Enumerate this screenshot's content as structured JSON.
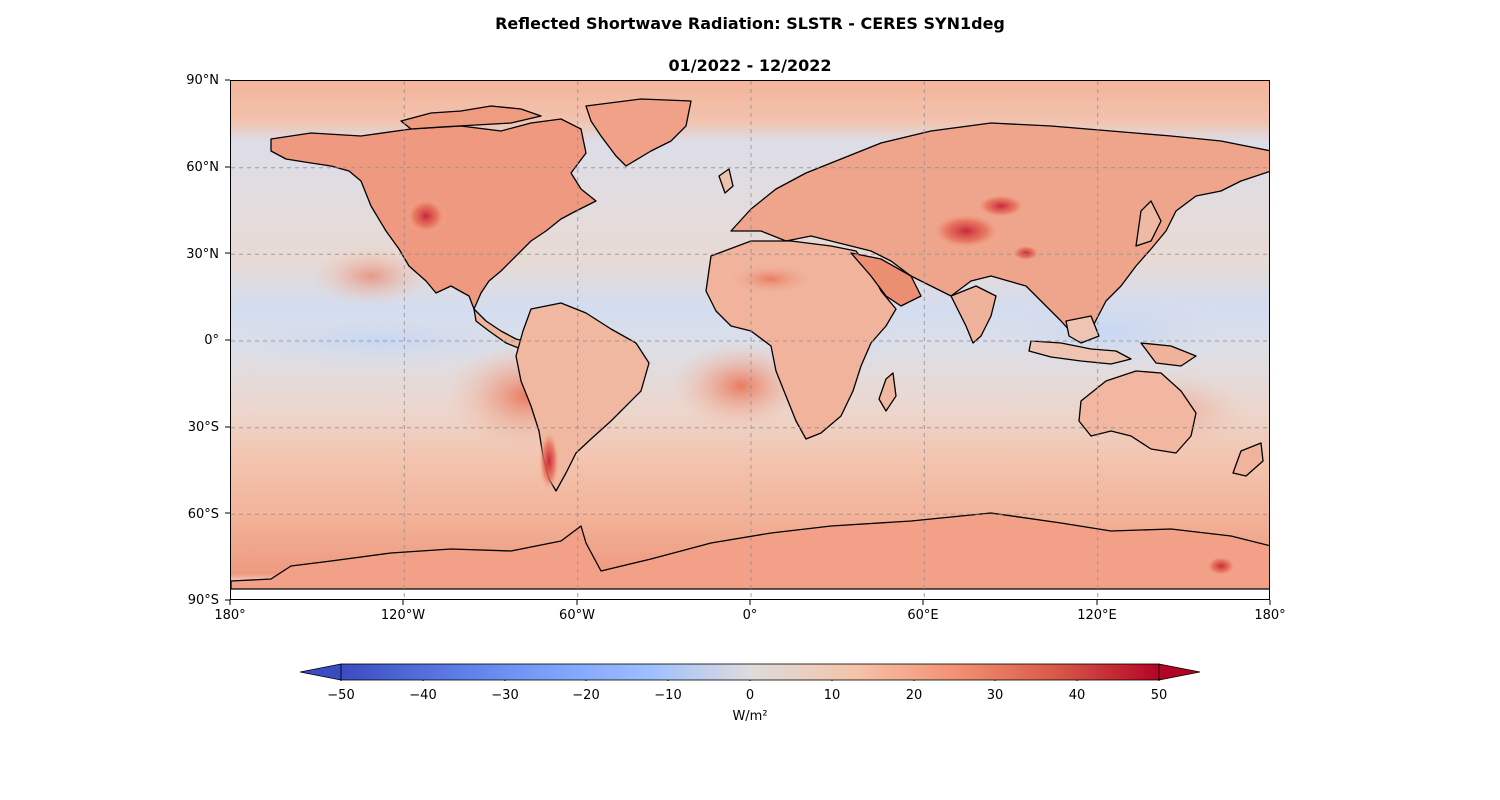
{
  "title": "Reflected Shortwave Radiation: SLSTR - CERES SYN1deg",
  "subtitle": "01/2022 - 12/2022",
  "map": {
    "projection": "PlateCarree",
    "lat_ticks": [
      "90°N",
      "60°N",
      "30°N",
      "0°",
      "30°S",
      "60°S",
      "90°S"
    ],
    "lon_ticks": [
      "180°",
      "120°W",
      "60°W",
      "0°",
      "60°E",
      "120°E",
      "180°"
    ],
    "gridlines": true,
    "gridline_style": "dashed gray",
    "coastlines": true,
    "colormap": "coolwarm",
    "colors": {
      "low": "#3b4cc0",
      "mid": "#dddcdc",
      "high": "#b40426",
      "ocean_mid": "#e6d7cf"
    }
  },
  "colorbar": {
    "ticks": [
      "−50",
      "−40",
      "−30",
      "−20",
      "−10",
      "0",
      "10",
      "20",
      "30",
      "40",
      "50"
    ],
    "range": [
      -50,
      50
    ],
    "extend": "both",
    "label": "W/m²"
  }
}
